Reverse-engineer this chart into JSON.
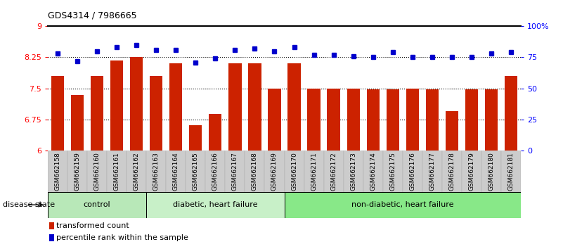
{
  "title": "GDS4314 / 7986665",
  "samples": [
    "GSM662158",
    "GSM662159",
    "GSM662160",
    "GSM662161",
    "GSM662162",
    "GSM662163",
    "GSM662164",
    "GSM662165",
    "GSM662166",
    "GSM662167",
    "GSM662168",
    "GSM662169",
    "GSM662170",
    "GSM662171",
    "GSM662172",
    "GSM662173",
    "GSM662174",
    "GSM662175",
    "GSM662176",
    "GSM662177",
    "GSM662178",
    "GSM662179",
    "GSM662180",
    "GSM662181"
  ],
  "bar_values": [
    7.8,
    7.35,
    7.8,
    8.17,
    8.25,
    7.8,
    8.1,
    6.62,
    6.88,
    8.1,
    8.1,
    7.5,
    8.1,
    7.5,
    7.5,
    7.5,
    7.47,
    7.47,
    7.5,
    7.47,
    6.95,
    7.47,
    7.47,
    7.8
  ],
  "percentile_values": [
    78,
    72,
    80,
    83,
    85,
    81,
    81,
    71,
    74,
    81,
    82,
    80,
    83,
    77,
    77,
    76,
    75,
    79,
    75,
    75,
    75,
    75,
    78,
    79
  ],
  "group_boundaries": [
    0,
    5,
    12,
    24
  ],
  "group_labels": [
    "control",
    "diabetic, heart failure",
    "non-diabetic, heart failure"
  ],
  "group_colors": [
    "#b8e8b8",
    "#c8f0c8",
    "#88e888"
  ],
  "ylim_left": [
    6.0,
    9.0
  ],
  "ylim_right": [
    0,
    100
  ],
  "yticks_left": [
    6.0,
    6.75,
    7.5,
    8.25,
    9.0
  ],
  "ytick_labels_left": [
    "6",
    "6.75",
    "7.5",
    "8.25",
    "9"
  ],
  "yticks_right": [
    0,
    25,
    50,
    75,
    100
  ],
  "ytick_labels_right": [
    "0",
    "25",
    "50",
    "75",
    "100%"
  ],
  "hlines": [
    6.75,
    7.5,
    8.25
  ],
  "bar_color": "#cc2200",
  "dot_color": "#0000cc",
  "bar_width": 0.65,
  "legend_items": [
    {
      "color": "#cc2200",
      "label": "transformed count"
    },
    {
      "color": "#0000cc",
      "label": "percentile rank within the sample"
    }
  ],
  "disease_state_label": "disease state",
  "tick_label_bg": "#cccccc"
}
